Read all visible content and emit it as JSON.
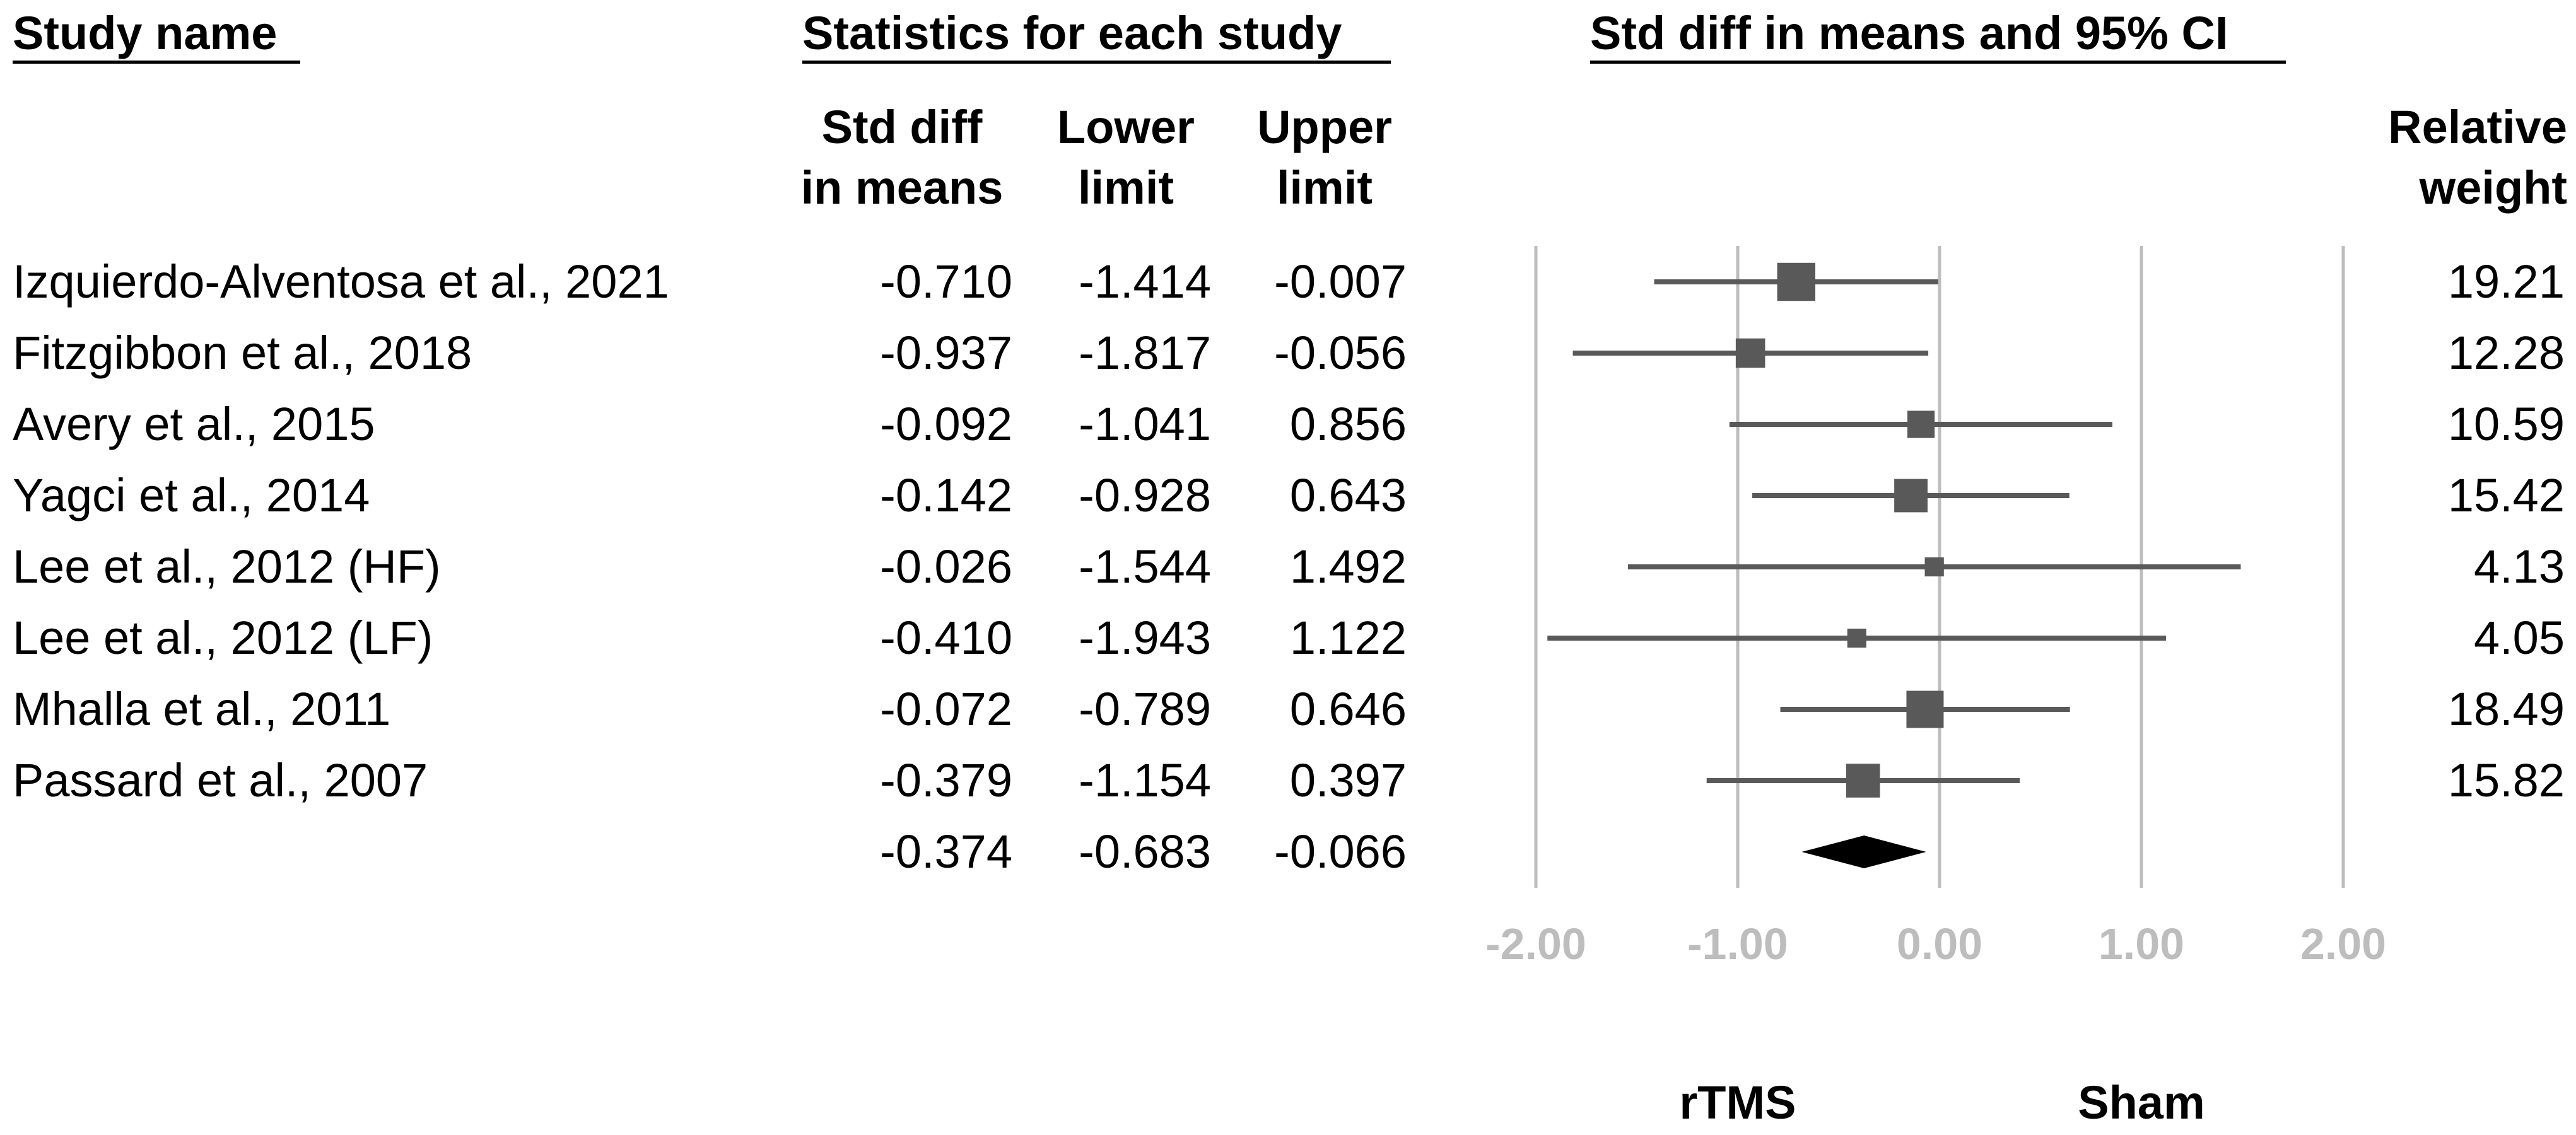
{
  "headers": {
    "study_name": "Study name",
    "statistics": "Statistics for each study",
    "plot": "Std diff in means and 95% CI"
  },
  "columns": {
    "std_diff": [
      "Std diff",
      "in means"
    ],
    "lower": [
      "Lower",
      "limit"
    ],
    "upper": [
      "Upper",
      "limit"
    ],
    "weight": [
      "Relative",
      "weight"
    ]
  },
  "rows": [
    {
      "study": "Izquierdo-Alventosa et al., 2021",
      "smd": "-0.710",
      "lower": "-1.414",
      "upper": "-0.007",
      "weight": "19.21"
    },
    {
      "study": "Fitzgibbon et al., 2018",
      "smd": "-0.937",
      "lower": "-1.817",
      "upper": "-0.056",
      "weight": "12.28"
    },
    {
      "study": "Avery et al., 2015",
      "smd": "-0.092",
      "lower": "-1.041",
      "upper": "0.856",
      "weight": "10.59"
    },
    {
      "study": "Yagci et al., 2014",
      "smd": "-0.142",
      "lower": "-0.928",
      "upper": "0.643",
      "weight": "15.42"
    },
    {
      "study": "Lee et al., 2012 (HF)",
      "smd": "-0.026",
      "lower": "-1.544",
      "upper": "1.492",
      "weight": "4.13"
    },
    {
      "study": "Lee et al., 2012 (LF)",
      "smd": "-0.410",
      "lower": "-1.943",
      "upper": "1.122",
      "weight": "4.05"
    },
    {
      "study": "Mhalla et al., 2011",
      "smd": "-0.072",
      "lower": "-0.789",
      "upper": "0.646",
      "weight": "18.49"
    },
    {
      "study": "Passard et al., 2007",
      "smd": "-0.379",
      "lower": "-1.154",
      "upper": "0.397",
      "weight": "15.82"
    }
  ],
  "summary": {
    "smd": "-0.374",
    "lower": "-0.683",
    "upper": "-0.066"
  },
  "axis": {
    "ticks": [
      "-2.00",
      "-1.00",
      "0.00",
      "1.00",
      "2.00"
    ],
    "left_label": "rTMS",
    "right_label": "Sham"
  },
  "colors": {
    "marker": "#595959",
    "diamond": "#000000",
    "gridline": "#bdbdbd",
    "tick_text": "#bdbdbd"
  },
  "chart_data": {
    "type": "forest",
    "title": "Std diff in means and 95% CI",
    "xlim": [
      -2,
      2
    ],
    "xticks": [
      -2,
      -1,
      0,
      1,
      2
    ],
    "favours_left": "rTMS",
    "favours_right": "Sham",
    "studies": [
      {
        "name": "Izquierdo-Alventosa et al., 2021",
        "smd": -0.71,
        "lower": -1.414,
        "upper": -0.007,
        "weight": 19.21
      },
      {
        "name": "Fitzgibbon et al., 2018",
        "smd": -0.937,
        "lower": -1.817,
        "upper": -0.056,
        "weight": 12.28
      },
      {
        "name": "Avery et al., 2015",
        "smd": -0.092,
        "lower": -1.041,
        "upper": 0.856,
        "weight": 10.59
      },
      {
        "name": "Yagci et al., 2014",
        "smd": -0.142,
        "lower": -0.928,
        "upper": 0.643,
        "weight": 15.42
      },
      {
        "name": "Lee et al., 2012 (HF)",
        "smd": -0.026,
        "lower": -1.544,
        "upper": 1.492,
        "weight": 4.13
      },
      {
        "name": "Lee et al., 2012 (LF)",
        "smd": -0.41,
        "lower": -1.943,
        "upper": 1.122,
        "weight": 4.05
      },
      {
        "name": "Mhalla et al., 2011",
        "smd": -0.072,
        "lower": -0.789,
        "upper": 0.646,
        "weight": 18.49
      },
      {
        "name": "Passard et al., 2007",
        "smd": -0.379,
        "lower": -1.154,
        "upper": 0.397,
        "weight": 15.82
      }
    ],
    "pooled": {
      "smd": -0.374,
      "lower": -0.683,
      "upper": -0.066
    }
  }
}
